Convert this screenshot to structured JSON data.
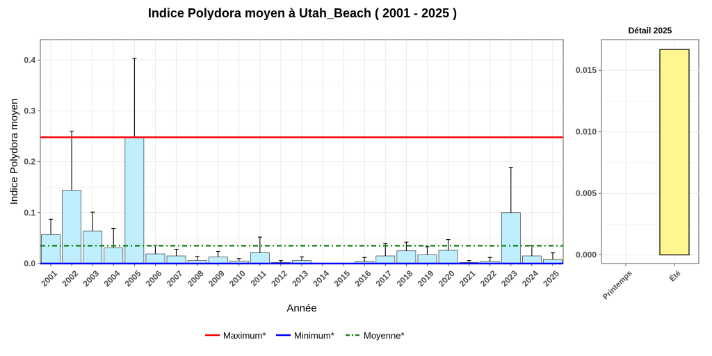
{
  "title": "Indice Polydora moyen à Utah_Beach ( 2001 - 2025 )",
  "colors": {
    "bar_fill": "#bfefff",
    "bar_fill_detail": "#fff68f",
    "maximum_line": "#ff0000",
    "minimum_line": "#0000ff",
    "moyenne_line": "#228b22",
    "grid": "#ebebeb"
  },
  "chart_data": [
    {
      "type": "bar",
      "xlabel": "Année",
      "ylabel": "Indice Polydora moyen",
      "ylim": [
        0,
        0.44
      ],
      "yticks": [
        "0.0",
        "0.1",
        "0.2",
        "0.3",
        "0.4"
      ],
      "ytick_values": [
        0,
        0.1,
        0.2,
        0.3,
        0.4
      ],
      "grid": true,
      "categories": [
        "2001",
        "2002",
        "2003",
        "2004",
        "2005",
        "2006",
        "2007",
        "2008",
        "2009",
        "2010",
        "2011",
        "2012",
        "2013",
        "2014",
        "2015",
        "2016",
        "2017",
        "2018",
        "2019",
        "2020",
        "2021",
        "2022",
        "2023",
        "2024",
        "2025"
      ],
      "values": [
        0.057,
        0.144,
        0.064,
        0.031,
        0.247,
        0.019,
        0.015,
        0.006,
        0.013,
        0.005,
        0.021,
        0.002,
        0.006,
        0,
        0,
        0.004,
        0.015,
        0.025,
        0.017,
        0.026,
        0.002,
        0.004,
        0.1,
        0.015,
        0.008
      ],
      "error_upper": [
        0.087,
        0.26,
        0.101,
        0.069,
        0.403,
        0.036,
        0.028,
        0.014,
        0.024,
        0.01,
        0.052,
        0.006,
        0.013,
        null,
        null,
        0.012,
        0.039,
        0.042,
        0.033,
        0.047,
        0.006,
        0.012,
        0.189,
        0.035,
        0.021
      ],
      "reference_lines": [
        {
          "name": "Maximum*",
          "value": 0.248,
          "style": "solid"
        },
        {
          "name": "Minimum*",
          "value": 0,
          "style": "solid"
        },
        {
          "name": "Moyenne*",
          "value": 0.035,
          "style": "dashdot"
        }
      ],
      "legend": [
        "Maximum*",
        "Minimum*",
        "Moyenne*"
      ],
      "legend_position": "bottom"
    },
    {
      "type": "bar",
      "title": "Détail 2025",
      "categories": [
        "Printemps",
        "Été"
      ],
      "values": [
        0,
        0.0167
      ],
      "ylim": [
        -0.0007,
        0.0175
      ],
      "yticks": [
        "0.000",
        "0.005",
        "0.010",
        "0.015"
      ],
      "ytick_values": [
        0,
        0.005,
        0.01,
        0.015
      ],
      "grid": true
    }
  ]
}
